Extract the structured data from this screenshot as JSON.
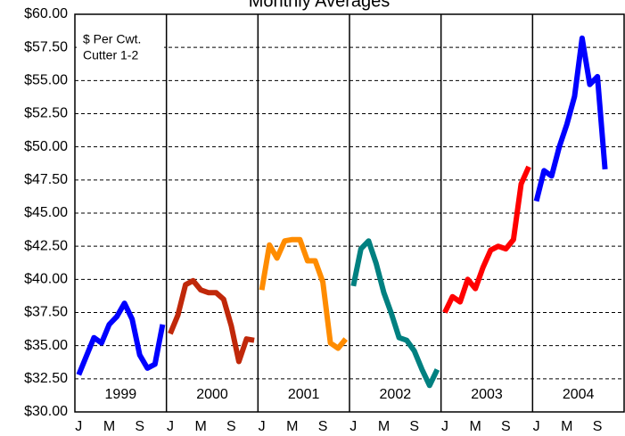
{
  "chart_data": {
    "type": "line",
    "title": "Monthly Averages",
    "annotation": [
      "$ Per Cwt.",
      "Cutter 1-2"
    ],
    "categories": [
      "J",
      null,
      null,
      null,
      "M",
      null,
      null,
      null,
      "S",
      null,
      null,
      null
    ],
    "series": [
      {
        "name": "1999",
        "color": "#0000ff",
        "values": [
          32.8,
          34.2,
          35.6,
          35.2,
          36.6,
          37.2,
          38.2,
          37.0,
          34.3,
          33.3,
          33.6,
          36.6
        ]
      },
      {
        "name": "2000",
        "color": "#c0280a",
        "values": [
          35.9,
          37.3,
          39.6,
          39.9,
          39.2,
          39.0,
          39.0,
          38.5,
          36.5,
          33.8,
          35.5,
          35.4
        ]
      },
      {
        "name": "2001",
        "color": "#ff8c00",
        "values": [
          39.2,
          42.6,
          41.6,
          42.9,
          43.0,
          43.0,
          41.4,
          41.4,
          39.8,
          35.2,
          34.8,
          35.5
        ]
      },
      {
        "name": "2002",
        "color": "#008080",
        "values": [
          39.5,
          42.3,
          42.9,
          41.2,
          39.0,
          37.4,
          35.6,
          35.4,
          34.6,
          33.2,
          32.0,
          33.2
        ]
      },
      {
        "name": "2003",
        "color": "#ff0000",
        "values": [
          37.5,
          38.7,
          38.3,
          40.0,
          39.3,
          40.9,
          42.2,
          42.5,
          42.3,
          43.0,
          47.2,
          48.5
        ]
      },
      {
        "name": "2004",
        "color": "#0000ff",
        "values": [
          45.9,
          48.2,
          47.8,
          50.0,
          51.7,
          53.8,
          58.2,
          54.7,
          55.3,
          48.3,
          null,
          null
        ]
      }
    ],
    "ylim": [
      30,
      60
    ],
    "yticks": [
      {
        "value": 30,
        "label": "$30.00"
      },
      {
        "value": 32.5,
        "label": "$32.50"
      },
      {
        "value": 35,
        "label": "$35.00"
      },
      {
        "value": 37.5,
        "label": "$37.50"
      },
      {
        "value": 40,
        "label": "$40.00"
      },
      {
        "value": 42.5,
        "label": "$42.50"
      },
      {
        "value": 45,
        "label": "$45.00"
      },
      {
        "value": 47.5,
        "label": "$47.50"
      },
      {
        "value": 50,
        "label": "$50.00"
      },
      {
        "value": 52.5,
        "label": "$52.50"
      },
      {
        "value": 55,
        "label": "$55.00"
      },
      {
        "value": 57.5,
        "label": "$57.50"
      },
      {
        "value": 60,
        "label": "$60.00"
      }
    ],
    "grid": true
  }
}
